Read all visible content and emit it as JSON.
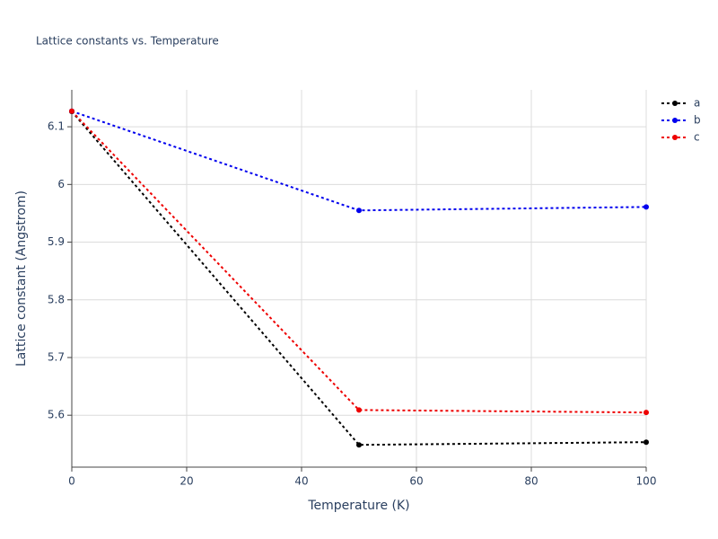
{
  "chart_data": {
    "type": "line",
    "title": "Lattice constants vs. Temperature",
    "x_label": "Temperature (K)",
    "y_label": "Lattice constant (Angstrom)",
    "x": [
      0,
      50,
      100
    ],
    "series": [
      {
        "name": "a",
        "color": "#000000",
        "values": [
          6.1265,
          5.5486,
          5.5533
        ]
      },
      {
        "name": "b",
        "color": "#0000ee",
        "values": [
          6.127,
          5.955,
          5.961
        ]
      },
      {
        "name": "c",
        "color": "#ee0000",
        "values": [
          6.127,
          5.609,
          5.6047
        ]
      }
    ],
    "xlim": [
      0,
      100
    ],
    "xticks": [
      0,
      20,
      40,
      60,
      80,
      100
    ],
    "ylim": [
      5.51,
      6.164
    ],
    "yticks": [
      5.6,
      5.7,
      5.8,
      5.9,
      6,
      6.1
    ],
    "grid": true,
    "legend_position": "top-right",
    "line_style": "dotted"
  }
}
